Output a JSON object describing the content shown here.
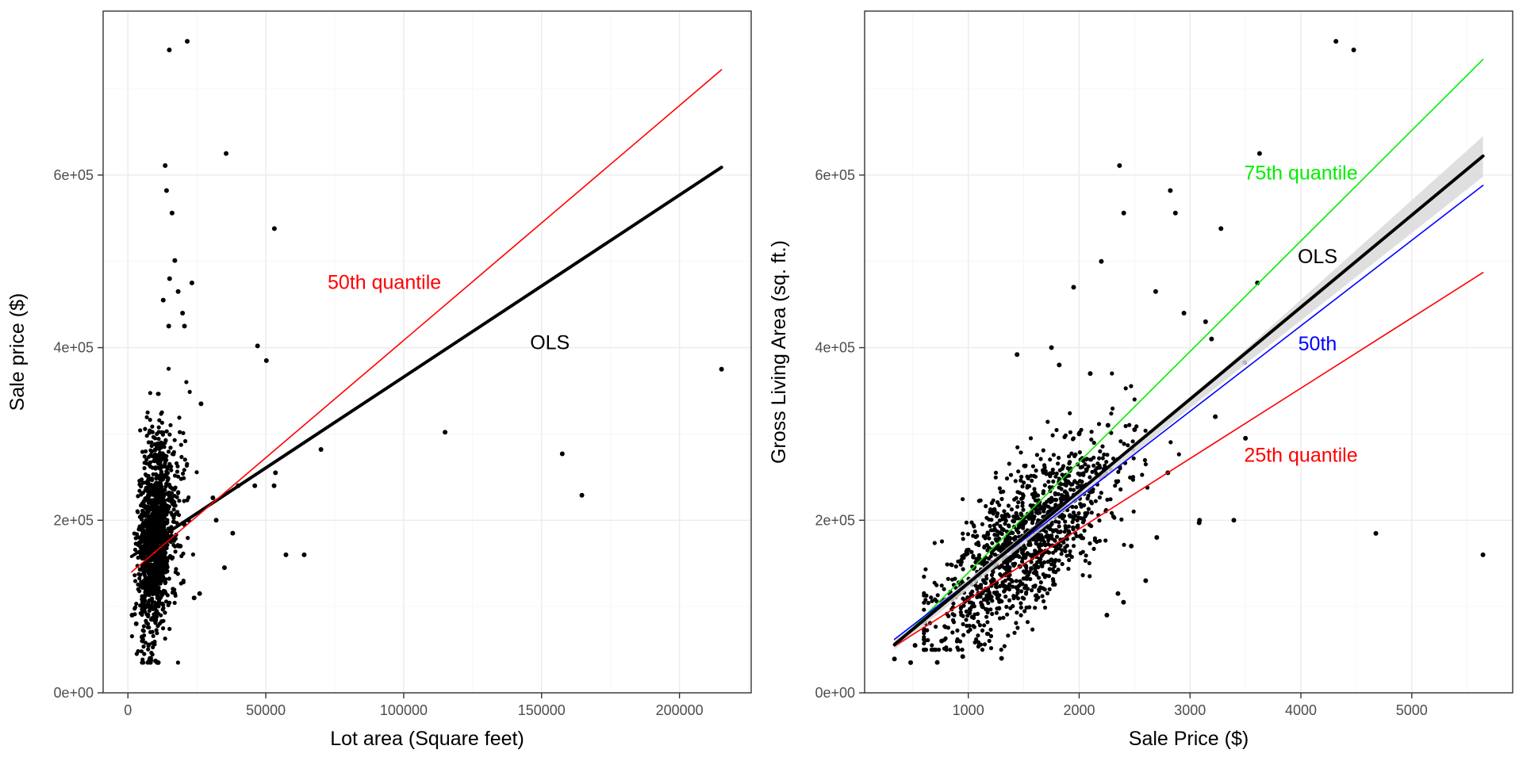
{
  "chart_data": [
    {
      "type": "scatter",
      "title": "",
      "xlabel": "Lot area (Square feet)",
      "ylabel": "Sale price ($)",
      "xlim": [
        -9000,
        226000
      ],
      "ylim": [
        0,
        790000
      ],
      "x_ticks": [
        0,
        50000,
        100000,
        150000,
        200000
      ],
      "x_tick_labels": [
        "0",
        "50000",
        "100000",
        "150000",
        "200000"
      ],
      "y_ticks": [
        0,
        200000,
        400000,
        600000
      ],
      "y_tick_labels": [
        "0e+00",
        "2e+05",
        "4e+05",
        "6e+05"
      ],
      "grid": true,
      "series": [
        {
          "kind": "points",
          "color": "#000000",
          "points": [
            [
              15000,
              745000
            ],
            [
              21500,
              755000
            ],
            [
              13500,
              611000
            ],
            [
              14000,
              582000
            ],
            [
              16000,
              556000
            ],
            [
              17000,
              501000
            ],
            [
              35600,
              625000
            ],
            [
              53100,
              538000
            ],
            [
              23200,
              475000
            ],
            [
              15100,
              480000
            ],
            [
              19800,
              440000
            ],
            [
              20500,
              425000
            ],
            [
              47000,
              402000
            ],
            [
              50200,
              385000
            ],
            [
              18200,
              465000
            ],
            [
              12800,
              455000
            ],
            [
              14800,
              425000
            ],
            [
              26500,
              335000
            ],
            [
              70000,
              282000
            ],
            [
              115000,
              302000
            ],
            [
              157500,
              277000
            ],
            [
              164600,
              229000
            ],
            [
              215245,
              375000
            ],
            [
              40000,
              240000
            ],
            [
              46000,
              240000
            ],
            [
              53500,
              255000
            ],
            [
              53000,
              240000
            ],
            [
              57300,
              160000
            ],
            [
              63900,
              160000
            ],
            [
              35000,
              145000
            ],
            [
              38000,
              185000
            ],
            [
              30800,
              226000
            ],
            [
              24000,
              110000
            ],
            [
              26000,
              115000
            ],
            [
              32000,
              200000
            ],
            [
              20500,
              195000
            ],
            [
              22000,
              200000
            ],
            [
              19000,
              170000
            ],
            [
              8000,
              40000
            ],
            [
              10000,
              37000
            ],
            [
              11000,
              35000
            ],
            [
              3000,
              80000
            ],
            [
              1500,
              90000
            ]
          ]
        },
        {
          "kind": "density_cloud",
          "color": "#000000",
          "x_range": [
            1300,
            28000
          ],
          "y_range": [
            35000,
            500000
          ],
          "center": [
            9500,
            180000
          ]
        },
        {
          "kind": "line",
          "name": "OLS",
          "color": "#000000",
          "points": [
            [
              1300,
              158000
            ],
            [
              215245,
              609000
            ]
          ]
        },
        {
          "kind": "line",
          "name": "50th quantile",
          "color": "#ff0000",
          "points": [
            [
              1300,
              140000
            ],
            [
              215245,
              722000
            ]
          ]
        }
      ],
      "annotations": [
        {
          "text": "50th quantile",
          "x": 93000,
          "y": 468000,
          "color": "#ff0000"
        },
        {
          "text": "OLS",
          "x": 153000,
          "y": 398000,
          "color": "#000000"
        }
      ]
    },
    {
      "type": "scatter",
      "title": "",
      "xlabel": "Sale Price ($)",
      "ylabel": "Gross Living Area (sq. ft.)",
      "xlim": [
        65,
        5910
      ],
      "ylim": [
        0,
        790000
      ],
      "x_ticks": [
        1000,
        2000,
        3000,
        4000,
        5000
      ],
      "x_tick_labels": [
        "1000",
        "2000",
        "3000",
        "4000",
        "5000"
      ],
      "y_ticks": [
        0,
        200000,
        400000,
        600000
      ],
      "y_tick_labels": [
        "0e+00",
        "2e+05",
        "4e+05",
        "6e+05"
      ],
      "grid": true,
      "series": [
        {
          "kind": "points",
          "color": "#000000",
          "points": [
            [
              4316,
              755000
            ],
            [
              4476,
              745000
            ],
            [
              2364,
              611000
            ],
            [
              3627,
              625000
            ],
            [
              2822,
              582000
            ],
            [
              2402,
              556000
            ],
            [
              2868,
              556000
            ],
            [
              3279,
              538000
            ],
            [
              3608,
              475000
            ],
            [
              2690,
              465000
            ],
            [
              3140,
              430000
            ],
            [
              3194,
              410000
            ],
            [
              2945,
              440000
            ],
            [
              3493,
              383000
            ],
            [
              1440,
              392000
            ],
            [
              2000,
              300000
            ],
            [
              4676,
              184750
            ],
            [
              5642,
              160000
            ],
            [
              3395,
              200000
            ],
            [
              3086,
              200000
            ],
            [
              3082,
              197000
            ],
            [
              3228,
              320000
            ],
            [
              2260,
              310000
            ],
            [
              2500,
              305000
            ],
            [
              3500,
              295000
            ],
            [
              2800,
              255000
            ],
            [
              2200,
              500000
            ],
            [
              1950,
              470000
            ],
            [
              2100,
              370000
            ],
            [
              1750,
              400000
            ],
            [
              1820,
              380000
            ],
            [
              2700,
              180000
            ],
            [
              2600,
              130000
            ],
            [
              2400,
              105000
            ],
            [
              2250,
              90000
            ],
            [
              2350,
              115000
            ],
            [
              2470,
              170000
            ],
            [
              334,
              39300
            ],
            [
              480,
              35000
            ],
            [
              520,
              55000
            ],
            [
              760,
              60000
            ],
            [
              720,
              35300
            ],
            [
              1300,
              40000
            ],
            [
              950,
              42000
            ]
          ]
        },
        {
          "kind": "density_cloud",
          "color": "#000000",
          "x_range": [
            600,
            2900
          ],
          "y_range": [
            50000,
            460000
          ],
          "center": [
            1500,
            180000
          ]
        },
        {
          "kind": "band",
          "name": "OLS confidence band",
          "color": "#d9d9d9",
          "x": [
            334,
            2990,
            5642
          ],
          "lower": [
            50000,
            329000,
            598000
          ],
          "upper": [
            62000,
            339000,
            645000
          ]
        },
        {
          "kind": "line",
          "name": "75th quantile",
          "color": "#00ee00",
          "points": [
            [
              334,
              54000
            ],
            [
              5642,
              734000
            ]
          ]
        },
        {
          "kind": "line",
          "name": "50th",
          "color": "#0000ff",
          "points": [
            [
              334,
              62000
            ],
            [
              5642,
              588000
            ]
          ]
        },
        {
          "kind": "line",
          "name": "25th quantile",
          "color": "#ff0000",
          "points": [
            [
              334,
              54000
            ],
            [
              5642,
              487000
            ]
          ]
        },
        {
          "kind": "line",
          "name": "OLS",
          "color": "#000000",
          "points": [
            [
              334,
              56000
            ],
            [
              5642,
              622000
            ]
          ]
        }
      ],
      "annotations": [
        {
          "text": "75th quantile",
          "x": 4000,
          "y": 595000,
          "color": "#00ee00"
        },
        {
          "text": "OLS",
          "x": 4150,
          "y": 498000,
          "color": "#000000"
        },
        {
          "text": "50th",
          "x": 4150,
          "y": 397000,
          "color": "#0000ff"
        },
        {
          "text": "25th quantile",
          "x": 4000,
          "y": 268000,
          "color": "#ff0000"
        }
      ]
    }
  ]
}
